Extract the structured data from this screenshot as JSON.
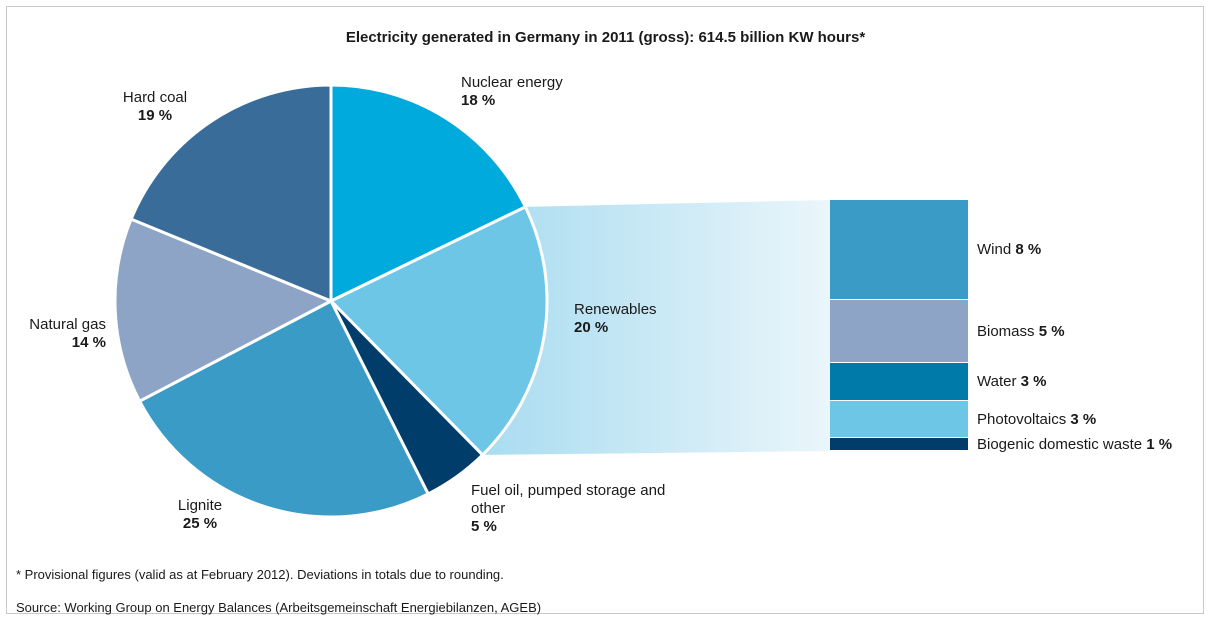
{
  "chart_data": {
    "type": "pie",
    "title": "Electricity generated in Germany in 2011 (gross): 614.5 billion KW hours*",
    "slices": [
      {
        "label": "Nuclear energy",
        "value": 18,
        "value_label": "18 %",
        "color": "#00aadc"
      },
      {
        "label": "Renewables",
        "value": 20,
        "value_label": "20 %",
        "color": "#6ec6e6"
      },
      {
        "label": "Fuel oil, pumped storage and other",
        "value": 5,
        "value_label": "5 %",
        "color": "#003d6b"
      },
      {
        "label": "Lignite",
        "value": 25,
        "value_label": "25 %",
        "color": "#3a9cc6"
      },
      {
        "label": "Natural gas",
        "value": 14,
        "value_label": "14 %",
        "color": "#8ea4c6"
      },
      {
        "label": "Hard coal",
        "value": 19,
        "value_label": "19 %",
        "color": "#3a6c9a"
      }
    ],
    "breakdown": {
      "of": "Renewables",
      "type": "stacked-bar",
      "segments": [
        {
          "label": "Wind",
          "value": 8,
          "value_label": "8 %",
          "color": "#3a9cc6"
        },
        {
          "label": "Biomass",
          "value": 5,
          "value_label": "5 %",
          "color": "#8ea4c6"
        },
        {
          "label": "Water",
          "value": 3,
          "value_label": "3 %",
          "color": "#007aa8"
        },
        {
          "label": "Photovoltaics",
          "value": 3,
          "value_label": "3 %",
          "color": "#6ec6e6"
        },
        {
          "label": "Biogenic domestic waste",
          "value": 1,
          "value_label": "1 %",
          "color": "#003d6b"
        }
      ]
    }
  },
  "footnote": "* Provisional figures (valid as at February 2012). Deviations in totals due to rounding.",
  "source": "Source: Working Group on Energy Balances (Arbeitsgemeinschaft Energiebilanzen, AGEB)"
}
